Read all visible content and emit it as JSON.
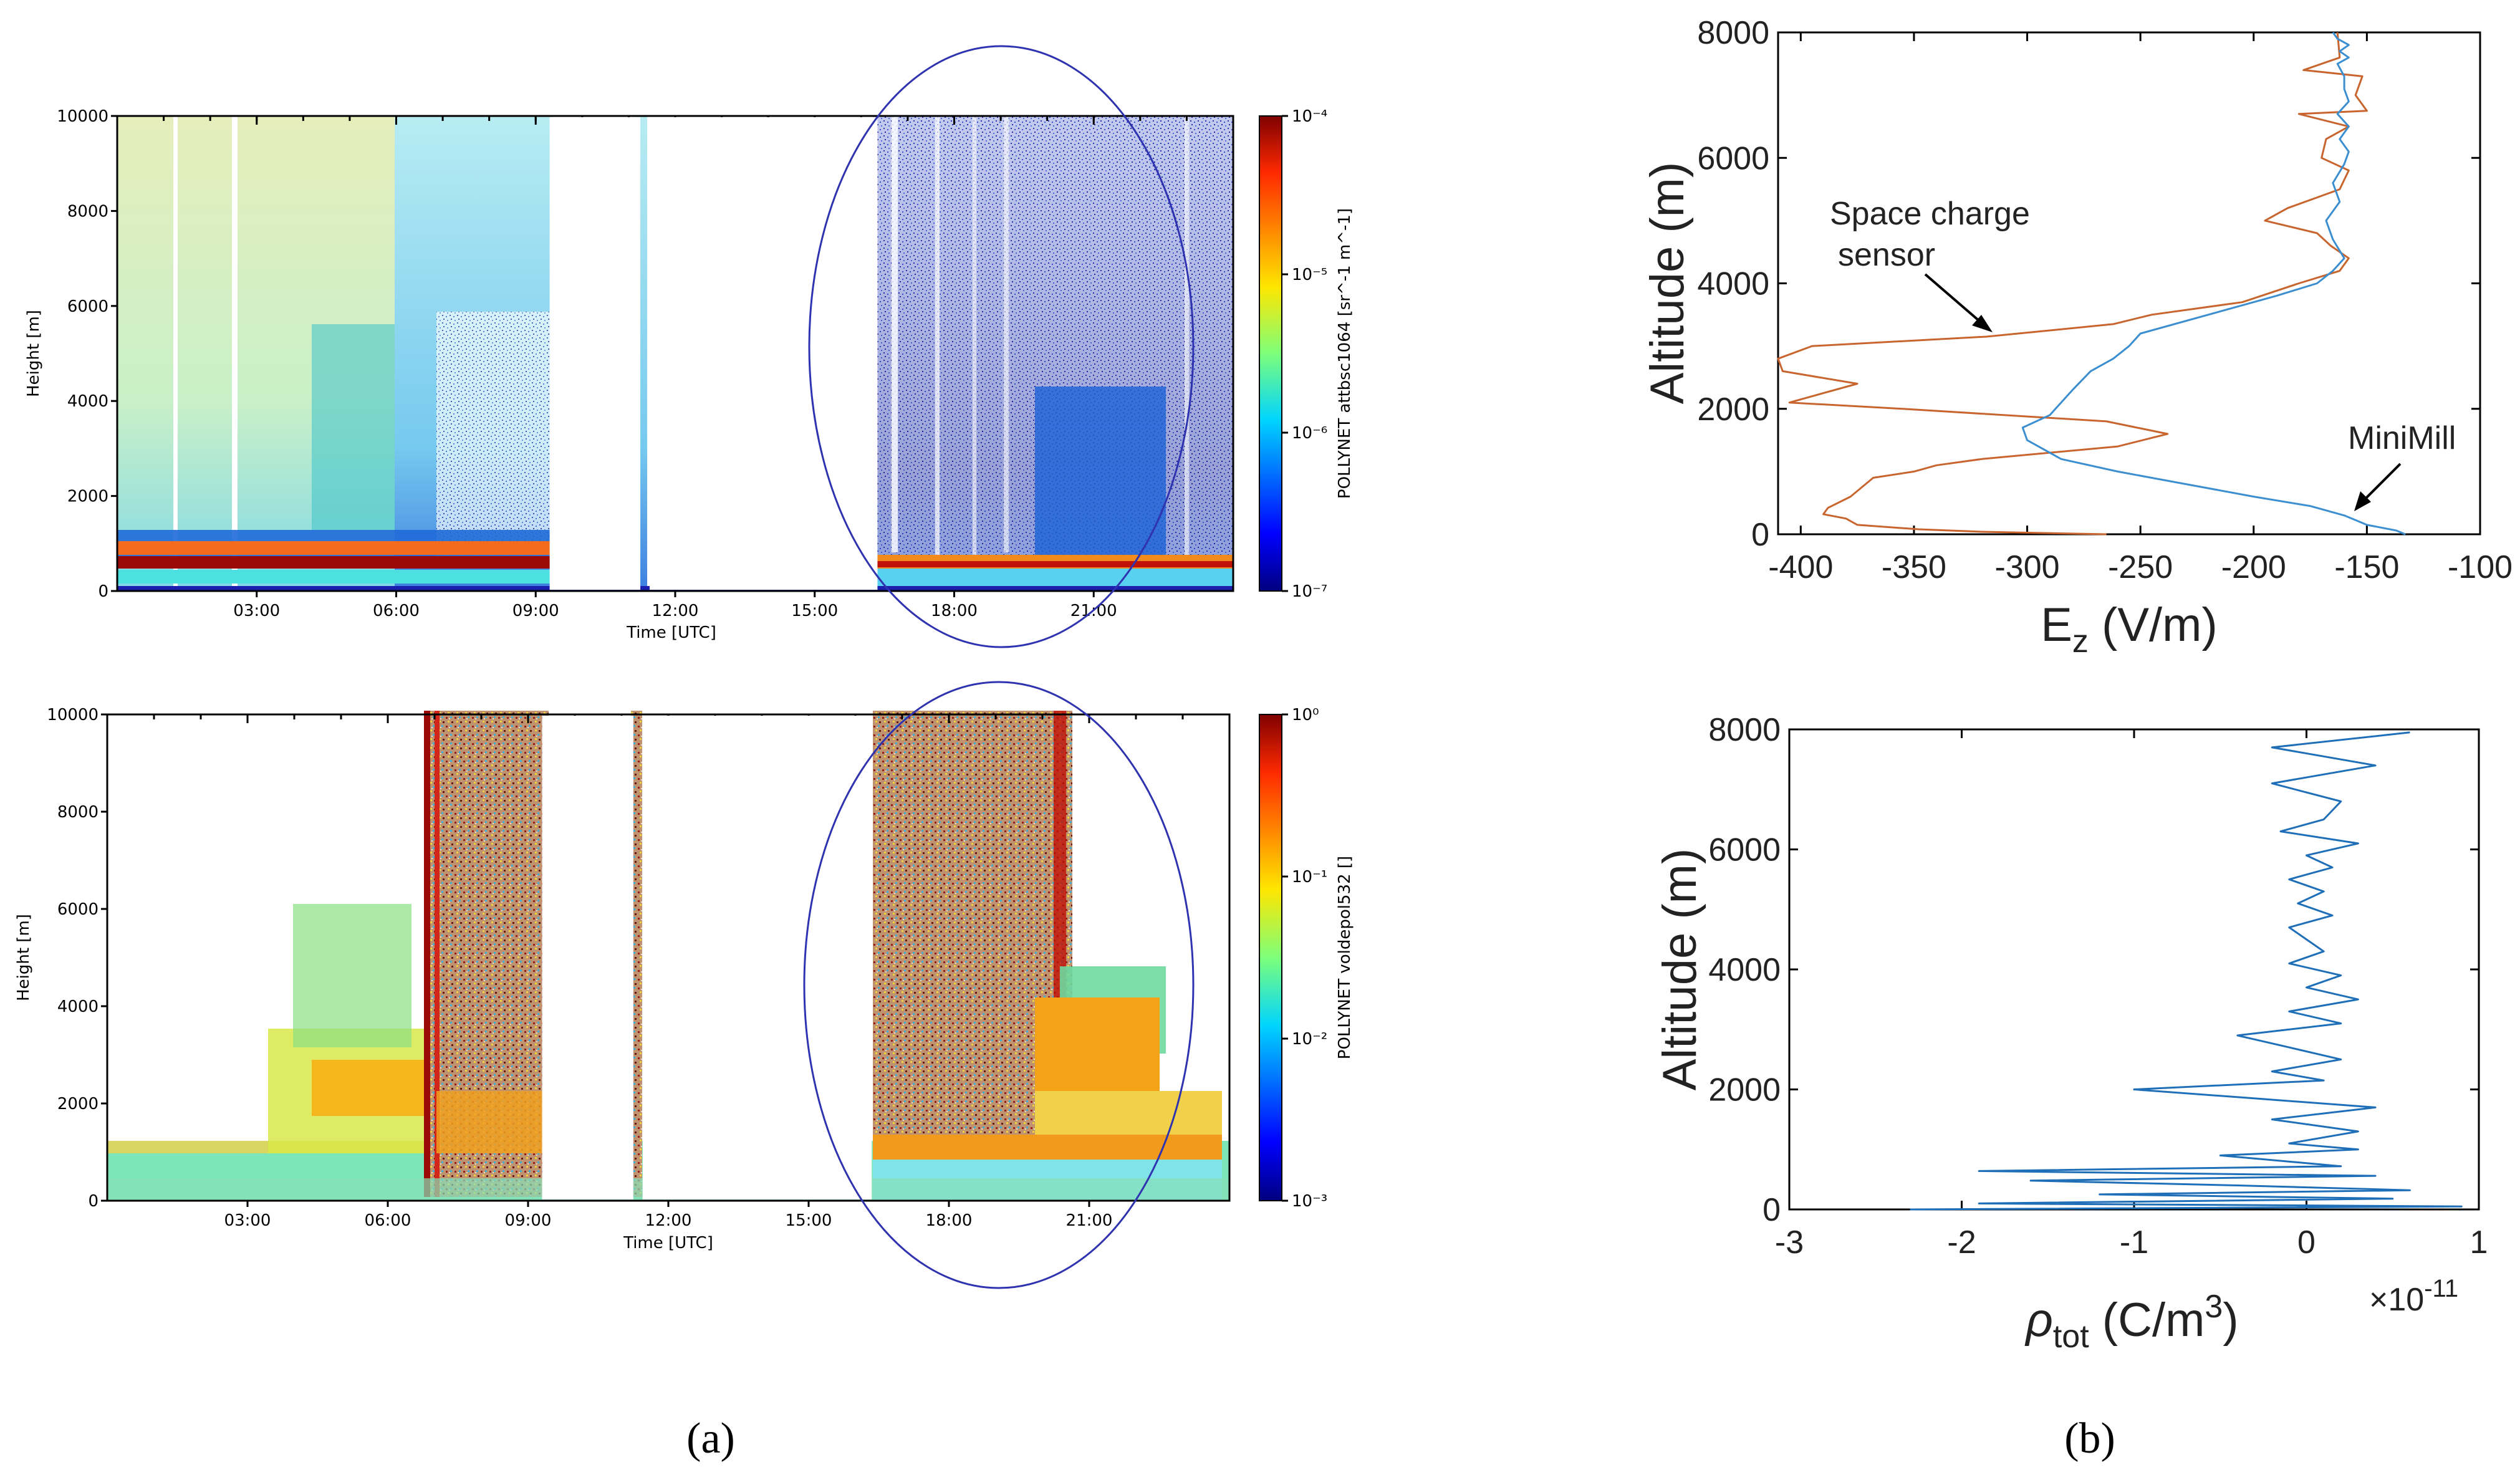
{
  "captions": {
    "a": "(a)",
    "b": "(b)"
  },
  "colors": {
    "ellipse": "#2f33b0",
    "space_charge": "#c8642e",
    "minimill": "#3b8ed0",
    "rho": "#1f6fb8"
  },
  "chart_data": [
    {
      "id": "lidar-attbsc",
      "type": "heatmap",
      "ylabel": "Height [m]",
      "xlabel": "Time [UTC]",
      "ylim": [
        0,
        10000
      ],
      "yticks": [
        "0",
        "2000",
        "4000",
        "6000",
        "8000",
        "10000"
      ],
      "xlim_hours": [
        0,
        24
      ],
      "xticks": [
        {
          "h": 3,
          "label": "03:00"
        },
        {
          "h": 6,
          "label": "06:00"
        },
        {
          "h": 9,
          "label": "09:00"
        },
        {
          "h": 12,
          "label": "12:00"
        },
        {
          "h": 15,
          "label": "15:00"
        },
        {
          "h": 18,
          "label": "18:00"
        },
        {
          "h": 21,
          "label": "21:00"
        }
      ],
      "colorbar": {
        "label": "POLLYNET attbsc1064 [sr^-1 m^-1]",
        "ticks": [
          "10⁻⁴",
          "10⁻⁵",
          "10⁻⁶",
          "10⁻⁷"
        ],
        "scale": "log",
        "range": [
          "1e-7",
          "1e-4"
        ]
      },
      "data_gaps_hours": [
        [
          9.3,
          11.25
        ],
        [
          11.45,
          16.35
        ]
      ],
      "highlight": "ellipse around 16:30-22:30"
    },
    {
      "id": "lidar-voldepol",
      "type": "heatmap",
      "ylabel": "Height [m]",
      "xlabel": "Time [UTC]",
      "ylim": [
        0,
        10000
      ],
      "yticks": [
        "0",
        "2000",
        "4000",
        "6000",
        "8000",
        "10000"
      ],
      "xlim_hours": [
        0,
        24
      ],
      "xticks": [
        {
          "h": 3,
          "label": "03:00"
        },
        {
          "h": 6,
          "label": "06:00"
        },
        {
          "h": 9,
          "label": "09:00"
        },
        {
          "h": 12,
          "label": "12:00"
        },
        {
          "h": 15,
          "label": "15:00"
        },
        {
          "h": 18,
          "label": "18:00"
        },
        {
          "h": 21,
          "label": "21:00"
        }
      ],
      "colorbar": {
        "label": "POLLYNET voldepol532 []",
        "ticks": [
          "10⁰",
          "10⁻¹",
          "10⁻²",
          "10⁻³"
        ],
        "scale": "log",
        "range": [
          "1e-3",
          "1e0"
        ]
      },
      "data_gaps_hours": [
        [
          9.3,
          11.25
        ],
        [
          11.45,
          16.35
        ]
      ],
      "highlight": "ellipse around 16:30-22:30"
    },
    {
      "id": "ez-profile",
      "type": "line",
      "xlabel": "E",
      "xlabel_sub": "z",
      "xlabel_unit": " (V/m)",
      "ylabel": "Altitude (m)",
      "xlim": [
        -410,
        -100
      ],
      "ylim": [
        0,
        8000
      ],
      "xticks": [
        -400,
        -350,
        -300,
        -250,
        -200,
        -150,
        -100
      ],
      "yticks": [
        0,
        2000,
        4000,
        6000,
        8000
      ],
      "annotations": [
        {
          "text": "Space charge",
          "text2": "sensor",
          "series": "Space charge sensor"
        },
        {
          "text": "MiniMill",
          "series": "MiniMill"
        }
      ],
      "series": [
        {
          "name": "Space charge sensor",
          "x": [
            -265,
            -320,
            -348,
            -375,
            -380,
            -390,
            -388,
            -378,
            -368,
            -350,
            -340,
            -320,
            -260,
            -238,
            -265,
            -355,
            -405,
            -375,
            -408,
            -410,
            -395,
            -318,
            -290,
            -262,
            -245,
            -205,
            -180,
            -162,
            -158,
            -166,
            -172,
            -195,
            -185,
            -162,
            -158,
            -170,
            -168,
            -158,
            -180,
            -150,
            -155,
            -152,
            -178,
            -162,
            -163
          ],
          "y": [
            0,
            40,
            80,
            150,
            250,
            320,
            420,
            600,
            900,
            1000,
            1100,
            1200,
            1400,
            1600,
            1800,
            2000,
            2100,
            2400,
            2600,
            2800,
            3000,
            3150,
            3250,
            3350,
            3500,
            3700,
            4000,
            4200,
            4400,
            4600,
            4800,
            5000,
            5200,
            5500,
            5800,
            6000,
            6300,
            6500,
            6700,
            6750,
            7000,
            7300,
            7400,
            7600,
            8000
          ]
        },
        {
          "name": "MiniMill",
          "x": [
            -133,
            -137,
            -150,
            -160,
            -175,
            -200,
            -230,
            -260,
            -285,
            -300,
            -302,
            -290,
            -285,
            -280,
            -272,
            -262,
            -255,
            -250,
            -220,
            -190,
            -172,
            -165,
            -160,
            -165,
            -168,
            -162,
            -165,
            -160,
            -158,
            -162,
            -158,
            -163,
            -158,
            -160,
            -160,
            -163,
            -158,
            -162,
            -158,
            -163,
            -165
          ],
          "y": [
            0,
            60,
            150,
            300,
            450,
            600,
            800,
            1000,
            1200,
            1500,
            1700,
            1900,
            2100,
            2300,
            2600,
            2800,
            3000,
            3200,
            3500,
            3800,
            4000,
            4200,
            4400,
            4700,
            5000,
            5300,
            5600,
            5900,
            6100,
            6300,
            6500,
            6700,
            6900,
            7100,
            7300,
            7500,
            7600,
            7700,
            7800,
            7900,
            8000
          ]
        }
      ]
    },
    {
      "id": "rho-profile",
      "type": "line",
      "xlabel_sym": "ρ",
      "xlabel_sub": "tot",
      "xlabel_unit": " (C/m",
      "xlabel_sup": "3",
      "xlabel_close": ")",
      "multiplier_base": "×10",
      "multiplier_exp": "-11",
      "ylabel": "Altitude (m)",
      "xlim": [
        -3,
        1
      ],
      "ylim": [
        0,
        8000
      ],
      "xticks": [
        -3,
        -2,
        -1,
        0,
        1
      ],
      "yticks": [
        0,
        2000,
        4000,
        6000,
        8000
      ],
      "series": [
        {
          "name": "rho_tot",
          "x": [
            -2.3,
            0.9,
            -1.9,
            0.5,
            -1.2,
            0.6,
            -0.4,
            -1.6,
            0.4,
            -1.9,
            0.2,
            -0.5,
            0.3,
            -0.1,
            0.3,
            -0.2,
            0.4,
            -0.3,
            -1.0,
            0.1,
            -0.2,
            0.2,
            -0.1,
            -0.4,
            0.2,
            -0.1,
            0.3,
            0.0,
            0.2,
            -0.1,
            0.1,
            0.0,
            -0.1,
            0.15,
            -0.05,
            0.1,
            -0.1,
            0.15,
            0.0,
            0.3,
            -0.15,
            0.1,
            0.2,
            -0.2,
            0.4,
            -0.2,
            0.6
          ],
          "y": [
            0,
            50,
            100,
            180,
            250,
            320,
            400,
            480,
            560,
            640,
            720,
            900,
            1000,
            1100,
            1300,
            1500,
            1700,
            1850,
            2000,
            2150,
            2300,
            2500,
            2700,
            2900,
            3100,
            3300,
            3500,
            3700,
            3900,
            4100,
            4300,
            4500,
            4700,
            4900,
            5100,
            5300,
            5500,
            5700,
            5900,
            6100,
            6300,
            6500,
            6800,
            7100,
            7400,
            7700,
            7950
          ]
        }
      ]
    }
  ]
}
